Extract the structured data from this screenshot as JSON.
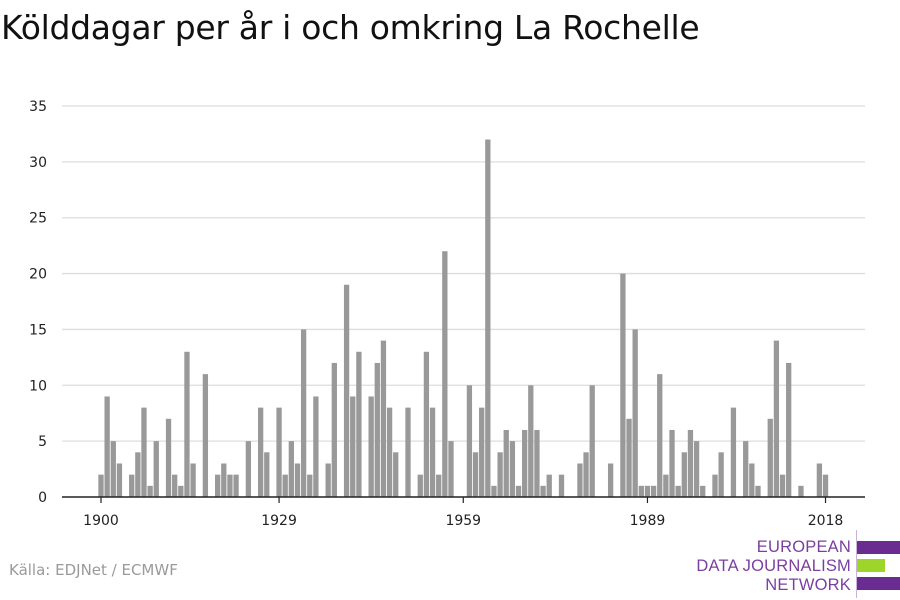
{
  "title": "Kölddagar per år i och omkring La Rochelle",
  "source": "Källa: EDJNet / ECMWF",
  "logo": {
    "line1": "EUROPEAN",
    "line2": "DATA JOURNALISM",
    "line3": "NETWORK",
    "colors": {
      "purple": "#6b2c91",
      "green": "#9ed52a",
      "text": "#7b3fa0"
    }
  },
  "chart_data": {
    "type": "bar",
    "title": "Kölddagar per år i och omkring La Rochelle",
    "xlabel": "",
    "ylabel": "",
    "ylim": [
      0,
      35
    ],
    "yticks": [
      0,
      5,
      10,
      15,
      20,
      25,
      30,
      35
    ],
    "xticks": [
      1900,
      1929,
      1959,
      1989,
      2018
    ],
    "grid": true,
    "bar_color": "#999999",
    "x": [
      1900,
      1901,
      1902,
      1903,
      1904,
      1905,
      1906,
      1907,
      1908,
      1909,
      1910,
      1911,
      1912,
      1913,
      1914,
      1915,
      1916,
      1917,
      1918,
      1919,
      1920,
      1921,
      1922,
      1923,
      1924,
      1925,
      1926,
      1927,
      1928,
      1929,
      1930,
      1931,
      1932,
      1933,
      1934,
      1935,
      1936,
      1937,
      1938,
      1939,
      1940,
      1941,
      1942,
      1943,
      1944,
      1945,
      1946,
      1947,
      1948,
      1949,
      1950,
      1951,
      1952,
      1953,
      1954,
      1955,
      1956,
      1957,
      1958,
      1959,
      1960,
      1961,
      1962,
      1963,
      1964,
      1965,
      1966,
      1967,
      1968,
      1969,
      1970,
      1971,
      1972,
      1973,
      1974,
      1975,
      1976,
      1977,
      1978,
      1979,
      1980,
      1981,
      1982,
      1983,
      1984,
      1985,
      1986,
      1987,
      1988,
      1989,
      1990,
      1991,
      1992,
      1993,
      1994,
      1995,
      1996,
      1997,
      1998,
      1999,
      2000,
      2001,
      2002,
      2003,
      2004,
      2005,
      2006,
      2007,
      2008,
      2009,
      2010,
      2011,
      2012,
      2013,
      2014,
      2015,
      2016,
      2017,
      2018
    ],
    "values": [
      2,
      9,
      5,
      3,
      0,
      2,
      4,
      8,
      1,
      5,
      0,
      7,
      2,
      1,
      13,
      3,
      0,
      11,
      0,
      2,
      3,
      2,
      2,
      0,
      5,
      0,
      8,
      4,
      0,
      8,
      2,
      5,
      3,
      15,
      2,
      9,
      0,
      3,
      12,
      0,
      19,
      9,
      13,
      0,
      9,
      12,
      14,
      8,
      4,
      0,
      8,
      0,
      2,
      13,
      8,
      2,
      22,
      5,
      0,
      0,
      10,
      4,
      8,
      32,
      1,
      4,
      6,
      5,
      1,
      6,
      10,
      6,
      1,
      2,
      0,
      2,
      0,
      0,
      3,
      4,
      10,
      0,
      0,
      3,
      0,
      20,
      7,
      15,
      1,
      1,
      1,
      11,
      2,
      6,
      1,
      4,
      6,
      5,
      1,
      0,
      2,
      4,
      0,
      8,
      0,
      5,
      3,
      1,
      0,
      7,
      14,
      2,
      12,
      0,
      1,
      0,
      0,
      3,
      2
    ]
  }
}
